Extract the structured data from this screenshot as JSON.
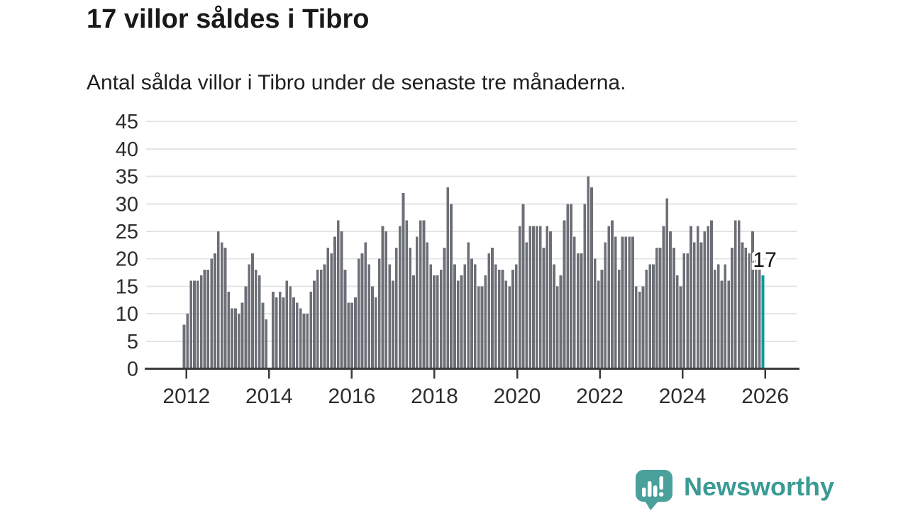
{
  "header": {
    "title": "17 villor såldes i Tibro",
    "subtitle": "Antal sålda villor i Tibro under de senaste tre månaderna."
  },
  "chart_data": {
    "type": "bar",
    "title": "17 villor såldes i Tibro",
    "subtitle": "Antal sålda villor i Tibro under de senaste tre månaderna.",
    "xlabel": "",
    "ylabel": "",
    "ylim": [
      0,
      45
    ],
    "grid": true,
    "y_tick_labels": [
      "0",
      "5",
      "10",
      "15",
      "20",
      "25",
      "30",
      "35",
      "40",
      "45"
    ],
    "y_ticks": [
      0,
      5,
      10,
      15,
      20,
      25,
      30,
      35,
      40,
      45
    ],
    "x_tick_labels": [
      "2012",
      "2014",
      "2016",
      "2018",
      "2020",
      "2022",
      "2024",
      "2026"
    ],
    "x_tick_month_index": [
      0,
      24,
      48,
      72,
      96,
      120,
      144,
      168
    ],
    "values": [
      8,
      10,
      16,
      16,
      16,
      17,
      18,
      18,
      20,
      21,
      25,
      23,
      22,
      14,
      11,
      11,
      10,
      12,
      15,
      19,
      21,
      18,
      17,
      12,
      9,
      0,
      14,
      13,
      14,
      13,
      16,
      15,
      13,
      12,
      11,
      10,
      10,
      14,
      16,
      18,
      18,
      19,
      22,
      21,
      24,
      27,
      25,
      18,
      12,
      12,
      13,
      20,
      21,
      23,
      19,
      15,
      13,
      20,
      26,
      25,
      19,
      16,
      22,
      26,
      32,
      27,
      22,
      17,
      24,
      27,
      27,
      23,
      19,
      17,
      17,
      18,
      22,
      33,
      30,
      19,
      16,
      17,
      19,
      23,
      20,
      19,
      15,
      15,
      17,
      21,
      22,
      19,
      18,
      18,
      16,
      15,
      18,
      19,
      26,
      30,
      23,
      26,
      26,
      26,
      26,
      22,
      26,
      25,
      19,
      15,
      17,
      27,
      30,
      30,
      24,
      21,
      21,
      30,
      35,
      33,
      20,
      16,
      18,
      23,
      26,
      27,
      24,
      18,
      24,
      24,
      24,
      24,
      15,
      14,
      15,
      18,
      19,
      19,
      22,
      22,
      26,
      31,
      25,
      22,
      17,
      15,
      21,
      21,
      26,
      23,
      26,
      23,
      25,
      26,
      27,
      18,
      19,
      16,
      19,
      16,
      22,
      27,
      27,
      23,
      22,
      21,
      25,
      21,
      18,
      17
    ],
    "highlight_index": 169,
    "highlight_value": 17,
    "annotation": "17",
    "bar_color": "#6d6f77",
    "highlight_color": "#0a9d97",
    "grid_color": "#e3e4e6",
    "axis_color": "#3b3b3b",
    "tick_label_color": "#2d2d2d",
    "annotation_color": "#111111",
    "legend": null
  },
  "branding": {
    "logo_text": "Newsworthy",
    "logo_color": "#3b9b94",
    "logo_icon": "speech-bubble-bar-chart-icon"
  }
}
